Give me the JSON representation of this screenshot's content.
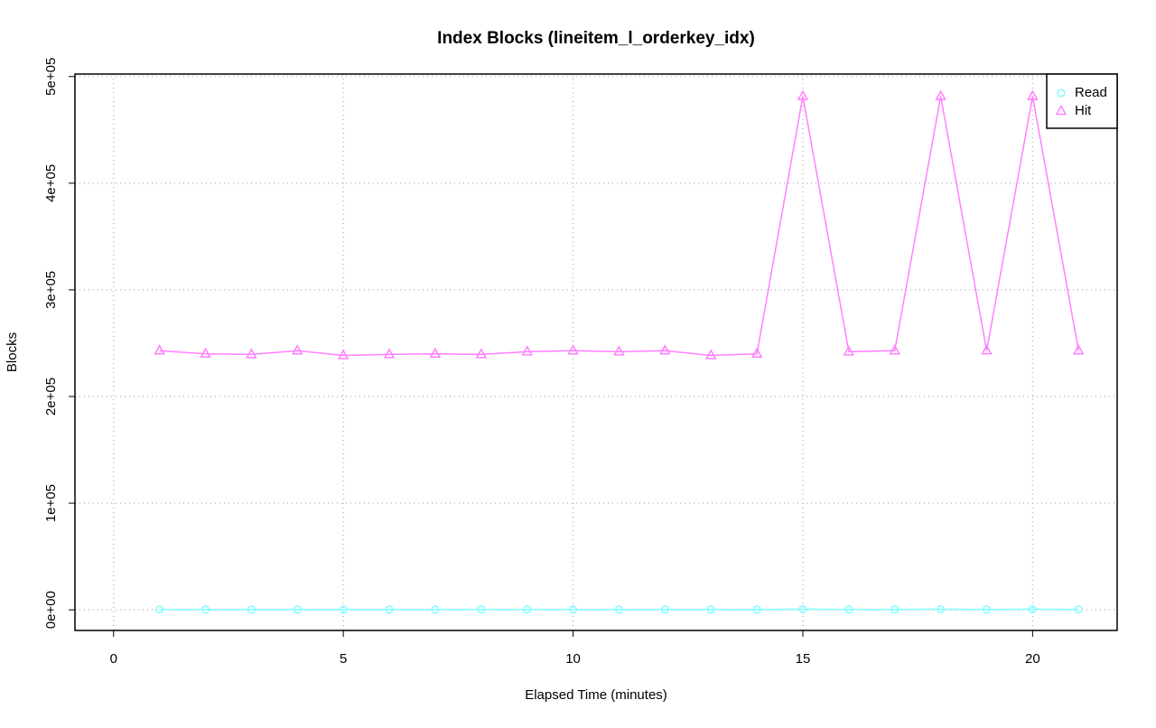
{
  "chart_data": {
    "type": "line",
    "title": "Index Blocks (lineitem_l_orderkey_idx)",
    "x_label": "Elapsed Time (minutes)",
    "y_label": "Blocks",
    "x": [
      1,
      2,
      3,
      4,
      5,
      6,
      7,
      8,
      9,
      10,
      11,
      12,
      13,
      14,
      15,
      16,
      17,
      18,
      19,
      20,
      21
    ],
    "series": [
      {
        "name": "Read",
        "color": "#80ffff",
        "marker": "circle",
        "values": [
          300,
          300,
          300,
          300,
          300,
          300,
          300,
          300,
          300,
          300,
          300,
          300,
          300,
          300,
          600,
          300,
          300,
          600,
          300,
          600,
          300
        ]
      },
      {
        "name": "Hit",
        "color": "#ff80ff",
        "marker": "triangle",
        "values": [
          243000,
          240000,
          239500,
          243000,
          238500,
          239500,
          240000,
          239500,
          242000,
          243000,
          242000,
          243000,
          238500,
          240000,
          481500,
          242000,
          243000,
          481500,
          243000,
          481500,
          243000
        ]
      }
    ],
    "xlim": [
      -0.84,
      21.84
    ],
    "xticks": [
      0,
      5,
      10,
      15,
      20
    ],
    "ylim": [
      -19320,
      502320
    ],
    "yticks": [
      {
        "value": 0,
        "label": "0e+00"
      },
      {
        "value": 100000,
        "label": "1e+05"
      },
      {
        "value": 200000,
        "label": "2e+05"
      },
      {
        "value": 300000,
        "label": "3e+05"
      },
      {
        "value": 400000,
        "label": "4e+05"
      },
      {
        "value": 500000,
        "label": "5e+05"
      }
    ],
    "grid": true,
    "legend": "top-right"
  }
}
